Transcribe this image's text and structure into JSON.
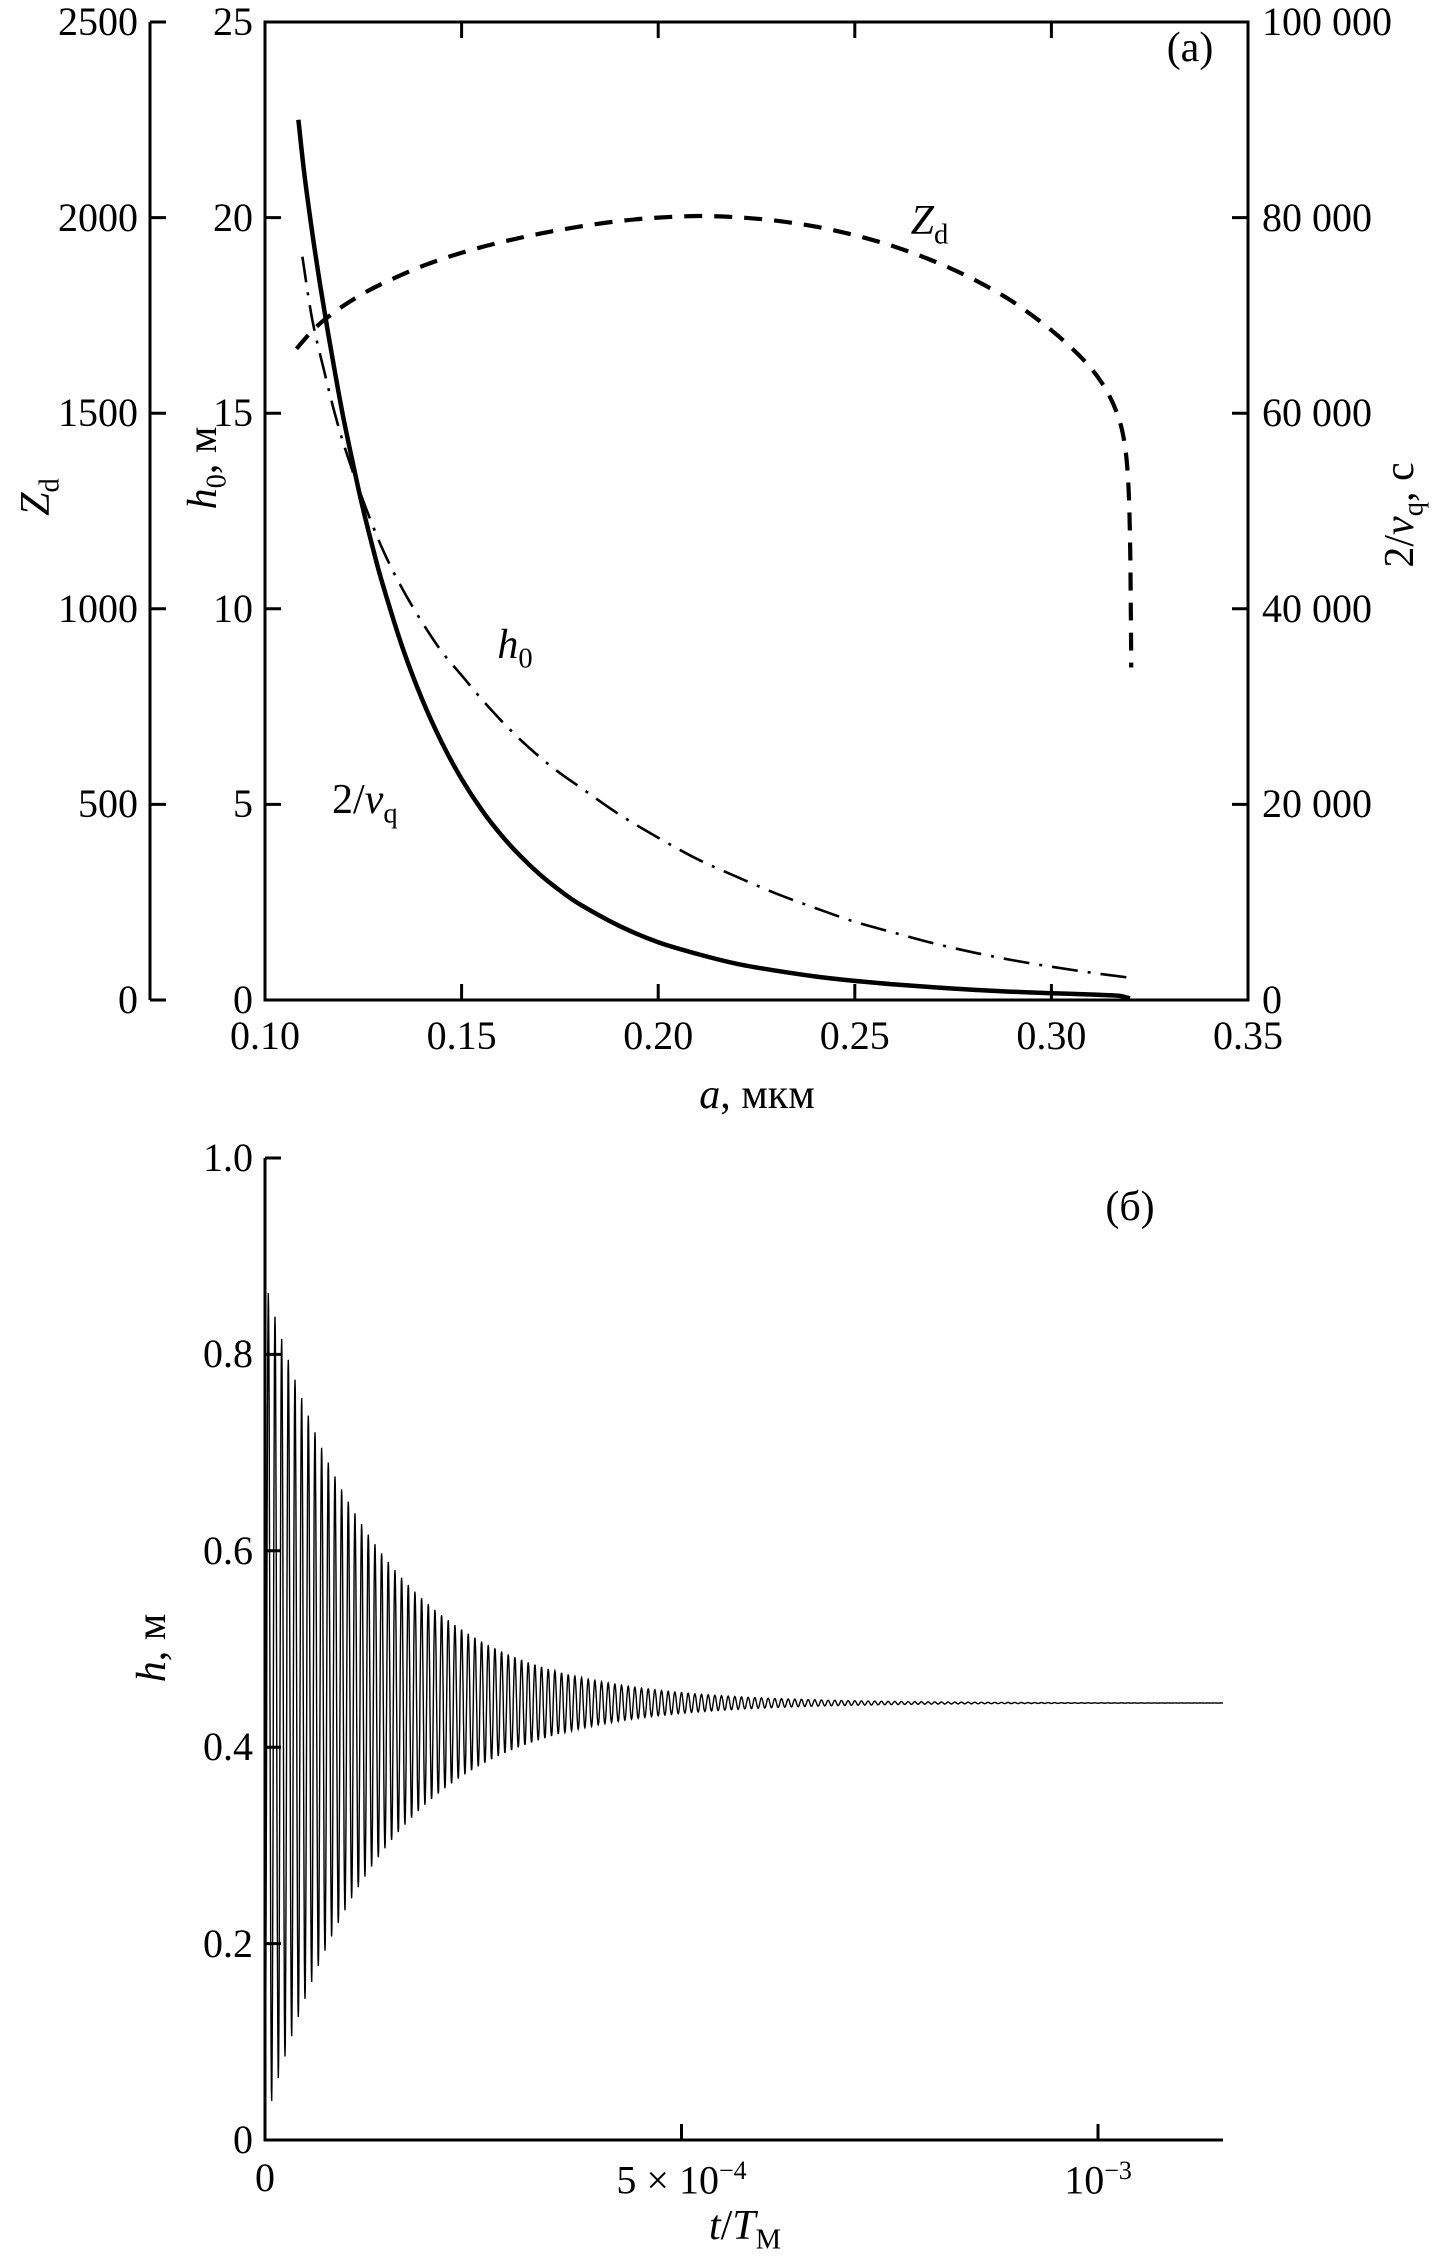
{
  "figure": {
    "panel_a_tag": "(a)",
    "panel_b_tag": "(б)"
  },
  "colors": {
    "ink": "#000000",
    "background": "#ffffff"
  },
  "chart_data": [
    {
      "type": "line",
      "panel": "a",
      "title": "",
      "xlabel": "a, мкм",
      "xlabel_parts": {
        "main": "a",
        "suffix": ", мкм"
      },
      "xlim": [
        0.1,
        0.35
      ],
      "grid": false,
      "legend": "inline curve labels",
      "xticks": [
        {
          "v": 0.1,
          "label": "0.10"
        },
        {
          "v": 0.15,
          "label": "0.15"
        },
        {
          "v": 0.2,
          "label": "0.20"
        },
        {
          "v": 0.25,
          "label": "0.25"
        },
        {
          "v": 0.3,
          "label": "0.30"
        },
        {
          "v": 0.35,
          "label": "0.35"
        }
      ],
      "axes": {
        "left_outer": {
          "label": "Z_d",
          "parts": {
            "main": "Z",
            "sub": "d"
          },
          "lim": [
            0,
            2500
          ],
          "ticks": [
            {
              "v": 0,
              "label": "0"
            },
            {
              "v": 500,
              "label": "500"
            },
            {
              "v": 1000,
              "label": "1000"
            },
            {
              "v": 1500,
              "label": "1500"
            },
            {
              "v": 2000,
              "label": "2000"
            },
            {
              "v": 2500,
              "label": "2500"
            }
          ]
        },
        "left_inner": {
          "label": "h_0, м",
          "parts": {
            "main": "h",
            "sub": "0",
            "suffix": ", м"
          },
          "lim": [
            0,
            25
          ],
          "ticks": [
            {
              "v": 0,
              "label": "0"
            },
            {
              "v": 5,
              "label": "5"
            },
            {
              "v": 10,
              "label": "10"
            },
            {
              "v": 15,
              "label": "15"
            },
            {
              "v": 20,
              "label": "20"
            },
            {
              "v": 25,
              "label": "25"
            }
          ]
        },
        "right": {
          "label": "2/ν_q, с",
          "parts": {
            "prefix": "2/",
            "main": "ν",
            "sub": "q",
            "suffix": ", с"
          },
          "lim": [
            0,
            100000
          ],
          "ticks": [
            {
              "v": 0,
              "label": "0"
            },
            {
              "v": 20000,
              "label": "20 000"
            },
            {
              "v": 40000,
              "label": "40 000"
            },
            {
              "v": 60000,
              "label": "60 000"
            },
            {
              "v": 80000,
              "label": "80 000"
            },
            {
              "v": 100000,
              "label": "100 000"
            }
          ]
        }
      },
      "series": [
        {
          "id": "nu",
          "name": "2/ν_q",
          "label_parts": {
            "prefix": "2/",
            "main": "ν",
            "sub": "q"
          },
          "style": "solid",
          "axis": "right",
          "label_pos": {
            "x": 0.1254,
            "y": 20000
          },
          "points": [
            [
              0.1085,
              90000
            ],
            [
              0.11,
              84500
            ],
            [
              0.112,
              78500
            ],
            [
              0.114,
              73200
            ],
            [
              0.116,
              68300
            ],
            [
              0.118,
              63700
            ],
            [
              0.12,
              59400
            ],
            [
              0.1225,
              54600
            ],
            [
              0.125,
              50100
            ],
            [
              0.1275,
              46100
            ],
            [
              0.13,
              42400
            ],
            [
              0.135,
              36000
            ],
            [
              0.14,
              30700
            ],
            [
              0.145,
              26300
            ],
            [
              0.15,
              22600
            ],
            [
              0.155,
              19500
            ],
            [
              0.16,
              16900
            ],
            [
              0.165,
              14700
            ],
            [
              0.17,
              12800
            ],
            [
              0.175,
              11200
            ],
            [
              0.18,
              9800
            ],
            [
              0.19,
              7600
            ],
            [
              0.2,
              5900
            ],
            [
              0.21,
              4700
            ],
            [
              0.22,
              3700
            ],
            [
              0.23,
              3000
            ],
            [
              0.24,
              2400
            ],
            [
              0.25,
              1950
            ],
            [
              0.26,
              1600
            ],
            [
              0.27,
              1300
            ],
            [
              0.28,
              1050
            ],
            [
              0.29,
              850
            ],
            [
              0.3,
              700
            ],
            [
              0.31,
              560
            ],
            [
              0.315,
              480
            ],
            [
              0.318,
              380
            ],
            [
              0.32,
              150
            ]
          ]
        },
        {
          "id": "h0",
          "name": "h_0",
          "label_parts": {
            "main": "h",
            "sub": "0"
          },
          "style": "dashdot",
          "axis": "left_inner",
          "label_pos": {
            "x": 0.1636,
            "y": 8.96
          },
          "points": [
            [
              0.1095,
              19.0
            ],
            [
              0.112,
              17.4
            ],
            [
              0.115,
              16.1
            ],
            [
              0.118,
              14.9
            ],
            [
              0.121,
              13.9
            ],
            [
              0.125,
              12.75
            ],
            [
              0.13,
              11.5
            ],
            [
              0.135,
              10.5
            ],
            [
              0.14,
              9.65
            ],
            [
              0.145,
              8.9
            ],
            [
              0.15,
              8.3
            ],
            [
              0.155,
              7.7
            ],
            [
              0.16,
              7.15
            ],
            [
              0.165,
              6.65
            ],
            [
              0.17,
              6.2
            ],
            [
              0.175,
              5.8
            ],
            [
              0.18,
              5.45
            ],
            [
              0.19,
              4.75
            ],
            [
              0.2,
              4.15
            ],
            [
              0.21,
              3.6
            ],
            [
              0.22,
              3.15
            ],
            [
              0.23,
              2.72
            ],
            [
              0.24,
              2.35
            ],
            [
              0.25,
              2.0
            ],
            [
              0.26,
              1.72
            ],
            [
              0.27,
              1.45
            ],
            [
              0.28,
              1.22
            ],
            [
              0.29,
              1.02
            ],
            [
              0.3,
              0.85
            ],
            [
              0.31,
              0.7
            ],
            [
              0.32,
              0.57
            ]
          ]
        },
        {
          "id": "zd",
          "name": "Z_d",
          "label_parts": {
            "main": "Z",
            "sub": "d"
          },
          "style": "dashed",
          "axis": "left_outer",
          "label_pos": {
            "x": 0.269,
            "y": 1980
          },
          "points": [
            [
              0.108,
              1665
            ],
            [
              0.11,
              1688
            ],
            [
              0.112,
              1710
            ],
            [
              0.115,
              1738
            ],
            [
              0.12,
              1775
            ],
            [
              0.125,
              1806
            ],
            [
              0.13,
              1832
            ],
            [
              0.14,
              1876
            ],
            [
              0.15,
              1910
            ],
            [
              0.16,
              1937
            ],
            [
              0.17,
              1959
            ],
            [
              0.18,
              1977
            ],
            [
              0.19,
              1991
            ],
            [
              0.2,
              2000
            ],
            [
              0.21,
              2004
            ],
            [
              0.22,
              2001
            ],
            [
              0.23,
              1992
            ],
            [
              0.24,
              1977
            ],
            [
              0.25,
              1955
            ],
            [
              0.26,
              1926
            ],
            [
              0.27,
              1889
            ],
            [
              0.28,
              1843
            ],
            [
              0.29,
              1786
            ],
            [
              0.3,
              1712
            ],
            [
              0.308,
              1638
            ],
            [
              0.313,
              1575
            ],
            [
              0.3165,
              1505
            ],
            [
              0.3185,
              1430
            ],
            [
              0.3195,
              1330
            ],
            [
              0.32,
              1180
            ],
            [
              0.3202,
              1000
            ],
            [
              0.3203,
              850
            ]
          ]
        }
      ]
    },
    {
      "type": "line",
      "panel": "б",
      "title": "",
      "xlabel": "t/T_M",
      "xlabel_parts": {
        "main": "t",
        "mid": "/",
        "main2": "T",
        "sub": "M"
      },
      "ylabel": "h, м",
      "ylabel_parts": {
        "main": "h",
        "suffix": ", м"
      },
      "xlim": [
        0,
        0.00115
      ],
      "ylim": [
        0,
        1.0
      ],
      "grid": false,
      "yticks": [
        {
          "v": 0,
          "label": "0"
        },
        {
          "v": 0.2,
          "label": "0.2"
        },
        {
          "v": 0.4,
          "label": "0.4"
        },
        {
          "v": 0.6,
          "label": "0.6"
        },
        {
          "v": 0.8,
          "label": "0.8"
        },
        {
          "v": 1.0,
          "label": "1.0"
        }
      ],
      "xticks": [
        {
          "v": 0,
          "base": "0",
          "sup": ""
        },
        {
          "v": 0.0005,
          "base": "5 × 10",
          "sup": "−4"
        },
        {
          "v": 0.001,
          "base": "10",
          "sup": "−3"
        }
      ],
      "series": [
        {
          "id": "osc",
          "name": "h(t)",
          "style": "solid",
          "description": "damped high-frequency oscillation of levitation height settling to equilibrium",
          "oscillation": {
            "equilibrium": 0.445,
            "initial_offset": 0.43,
            "decay_tau": 0.000135,
            "period": 8e-06,
            "t_end": 0.00115
          }
        }
      ]
    }
  ]
}
